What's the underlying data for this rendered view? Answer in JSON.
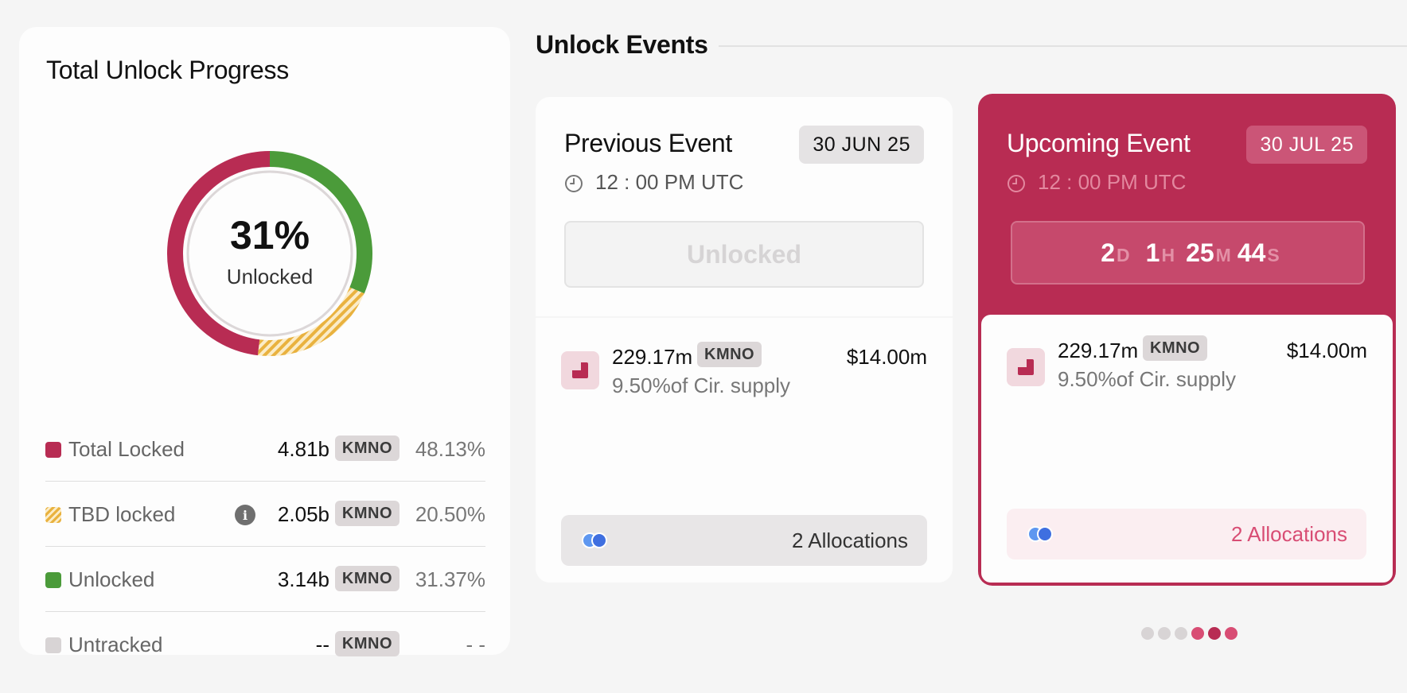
{
  "progress": {
    "title": "Total Unlock Progress",
    "percent_label": "31%",
    "center_label": "Unlocked",
    "chart_data": {
      "type": "pie",
      "segments": [
        {
          "name": "Unlocked",
          "value": 31.37,
          "color": "#4b9b3a"
        },
        {
          "name": "TBD locked",
          "value": 20.5,
          "color": "#e9b23f",
          "pattern": "striped"
        },
        {
          "name": "Total Locked",
          "value": 48.13,
          "color": "#b82c53"
        }
      ]
    },
    "legend": [
      {
        "label": "Total Locked",
        "amount": "4.81b",
        "token": "KMNO",
        "percent": "48.13%",
        "color": "#b82c53"
      },
      {
        "label": "TBD locked",
        "amount": "2.05b",
        "token": "KMNO",
        "percent": "20.50%",
        "color": "#e9b23f",
        "info_icon": "info-icon",
        "info_glyph": "i"
      },
      {
        "label": "Unlocked",
        "amount": "3.14b",
        "token": "KMNO",
        "percent": "31.37%",
        "color": "#4b9b3a"
      },
      {
        "label": "Untracked",
        "amount": "--",
        "token": "KMNO",
        "percent": "- -",
        "color": "#d8d4d5"
      }
    ]
  },
  "events": {
    "title": "Unlock Events",
    "previous": {
      "title": "Previous Event",
      "date": "30 JUN 25",
      "time": "12 : 00 PM UTC",
      "status": "Unlocked",
      "amount": "229.17m",
      "token": "KMNO",
      "value": "$14.00m",
      "supply": "9.50%of Cir. supply",
      "allocations": "2 Allocations"
    },
    "upcoming": {
      "title": "Upcoming Event",
      "date": "30 JUL 25",
      "time": "12 : 00 PM UTC",
      "countdown": {
        "days": "2",
        "days_unit": "D",
        "hours": "1",
        "hours_unit": "H",
        "minutes": "25",
        "minutes_unit": "M",
        "seconds": "44",
        "seconds_unit": "S"
      },
      "amount": "229.17m",
      "token": "KMNO",
      "value": "$14.00m",
      "supply": "9.50%of Cir. supply",
      "allocations": "2 Allocations"
    },
    "pager_colors": [
      "#d8d4d5",
      "#d8d4d5",
      "#d8d4d5",
      "#d84d74",
      "#b82c53",
      "#d84d74"
    ],
    "pager_active_index": 4
  },
  "icons": {
    "clock": "clock-icon",
    "allocation": "allocation-icon",
    "allocation_dots": "allocation-avatars-icon"
  }
}
